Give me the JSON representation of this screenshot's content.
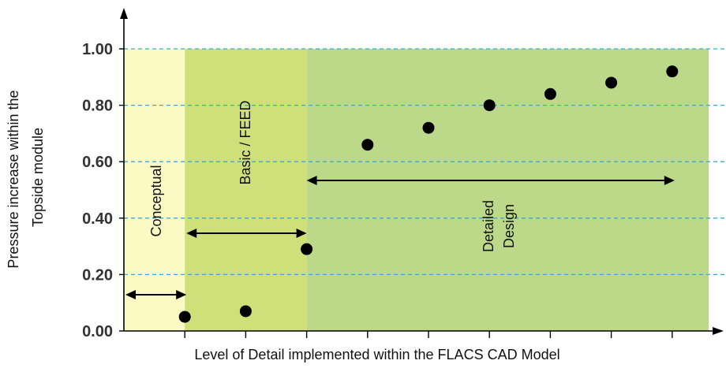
{
  "chart_data": {
    "type": "scatter",
    "title": "",
    "xlabel": "Level of Detail implemented within the FLACS CAD Model",
    "ylabel_lines": [
      "Pressure increase within the",
      "Topside module"
    ],
    "ylim": [
      0,
      1.0
    ],
    "yticks": [
      "0.00",
      "0.20",
      "0.40",
      "0.60",
      "0.80",
      "1.00"
    ],
    "ytick_values": [
      0,
      0.2,
      0.4,
      0.6,
      0.8,
      1.0
    ],
    "x_positions": 10,
    "points": [
      {
        "x": 1,
        "y": 0.05
      },
      {
        "x": 2,
        "y": 0.07
      },
      {
        "x": 3,
        "y": 0.29
      },
      {
        "x": 4,
        "y": 0.66
      },
      {
        "x": 5,
        "y": 0.72
      },
      {
        "x": 6,
        "y": 0.8
      },
      {
        "x": 7,
        "y": 0.84
      },
      {
        "x": 8,
        "y": 0.88
      },
      {
        "x": 9,
        "y": 0.92
      }
    ],
    "zones": [
      {
        "name": "Conceptual",
        "x_from": 0,
        "x_to": 1,
        "color": "#fcfac4"
      },
      {
        "name": "Basic / FEED",
        "x_from": 1,
        "x_to": 3,
        "color": "#cfe07a"
      },
      {
        "name": "Detailed Design",
        "lines": [
          "Detailed",
          "Design"
        ],
        "x_from": 3,
        "x_to": 10,
        "color": "#bcd98a"
      }
    ],
    "gridlines": "dashed",
    "grid_color": "#33aadd"
  }
}
